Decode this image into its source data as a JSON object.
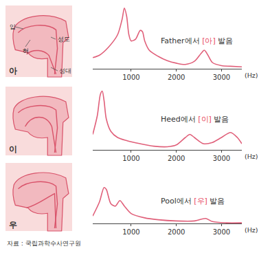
{
  "chart_data": [
    {
      "type": "line",
      "panel_label": "아",
      "diagram_labels": [
        "입",
        "혀",
        "성도",
        "성대"
      ],
      "caption": "Father에서 [아] 발음",
      "caption_highlight": "[아]",
      "x": [
        150,
        300,
        500,
        700,
        800,
        850,
        900,
        950,
        1000,
        1100,
        1200,
        1250,
        1300,
        1400,
        1600,
        1800,
        2000,
        2200,
        2400,
        2550,
        2620,
        2700,
        2800,
        3000,
        3200,
        3450
      ],
      "values": [
        18,
        22,
        35,
        55,
        80,
        98,
        85,
        55,
        45,
        48,
        62,
        60,
        45,
        30,
        20,
        13,
        9,
        7,
        12,
        25,
        30,
        22,
        10,
        5,
        4,
        3
      ],
      "color": "#e0607a",
      "xlim": [
        150,
        3450
      ],
      "xticks": [
        1000,
        2000,
        3000
      ],
      "x_unit": "(Hz)",
      "ylim": [
        0,
        100
      ],
      "tick_labels": "x"
    },
    {
      "type": "line",
      "panel_label": "이",
      "caption": "Heed에서 [이] 발음",
      "caption_highlight": "[이]",
      "x": [
        150,
        250,
        320,
        360,
        400,
        450,
        550,
        700,
        900,
        1200,
        1500,
        1800,
        2000,
        2200,
        2300,
        2400,
        2600,
        2800,
        3000,
        3200,
        3350,
        3450
      ],
      "values": [
        25,
        55,
        90,
        95,
        80,
        50,
        30,
        20,
        15,
        10,
        6,
        5,
        8,
        20,
        25,
        20,
        10,
        12,
        20,
        28,
        20,
        10
      ],
      "color": "#e0607a",
      "xlim": [
        150,
        3450
      ],
      "xticks": [
        1000,
        2000,
        3000
      ],
      "x_unit": "(Hz)",
      "ylim": [
        0,
        100
      ],
      "tick_labels": "x"
    },
    {
      "type": "line",
      "panel_label": "우",
      "caption": "Pool에서 [우] 발음",
      "caption_highlight": "[우]",
      "x": [
        150,
        300,
        400,
        450,
        550,
        650,
        750,
        850,
        1000,
        1300,
        1600,
        2000,
        2400,
        2650,
        2800,
        3100,
        3450
      ],
      "values": [
        12,
        35,
        58,
        55,
        32,
        28,
        37,
        28,
        16,
        9,
        6,
        4,
        4,
        8,
        3,
        1,
        1
      ],
      "color": "#e0607a",
      "xlim": [
        150,
        3450
      ],
      "xticks": [
        1000,
        2000,
        3000
      ],
      "x_unit": "(Hz)",
      "ylim": [
        0,
        100
      ],
      "tick_labels": "x"
    }
  ],
  "source": "자료 : 국립과학수사연구원"
}
